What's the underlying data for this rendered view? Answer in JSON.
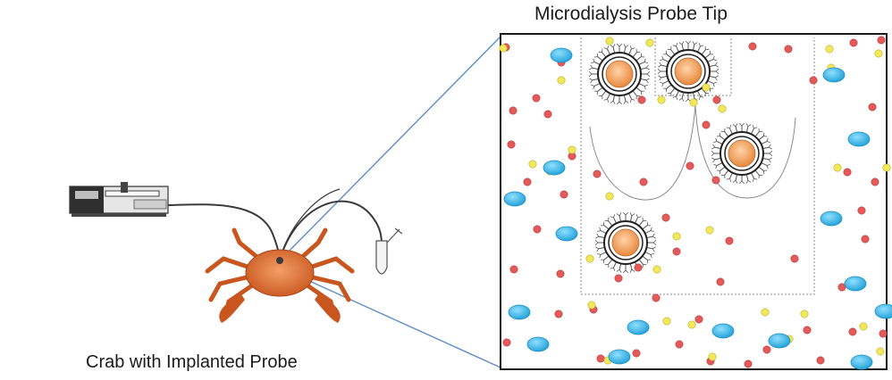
{
  "labels": {
    "probe_tip_title": "Microdialysis Probe Tip",
    "crab_caption": "Crab with Implanted Probe"
  },
  "colors": {
    "box_border": "#1a1a1a",
    "zoom_lines": "#5b8cc9",
    "tubing": "#3a3a3a",
    "membrane": "#9a9a9a",
    "red_molecule": "#e35a5a",
    "yellow_molecule": "#f2e85a",
    "blue_molecule": "#3cb7e6",
    "vesicle_core": "#f0a060",
    "crab_shell": "#e07a3c"
  },
  "icons": [
    "syringe-pump-icon",
    "crab-icon",
    "collection-vial-icon"
  ]
}
